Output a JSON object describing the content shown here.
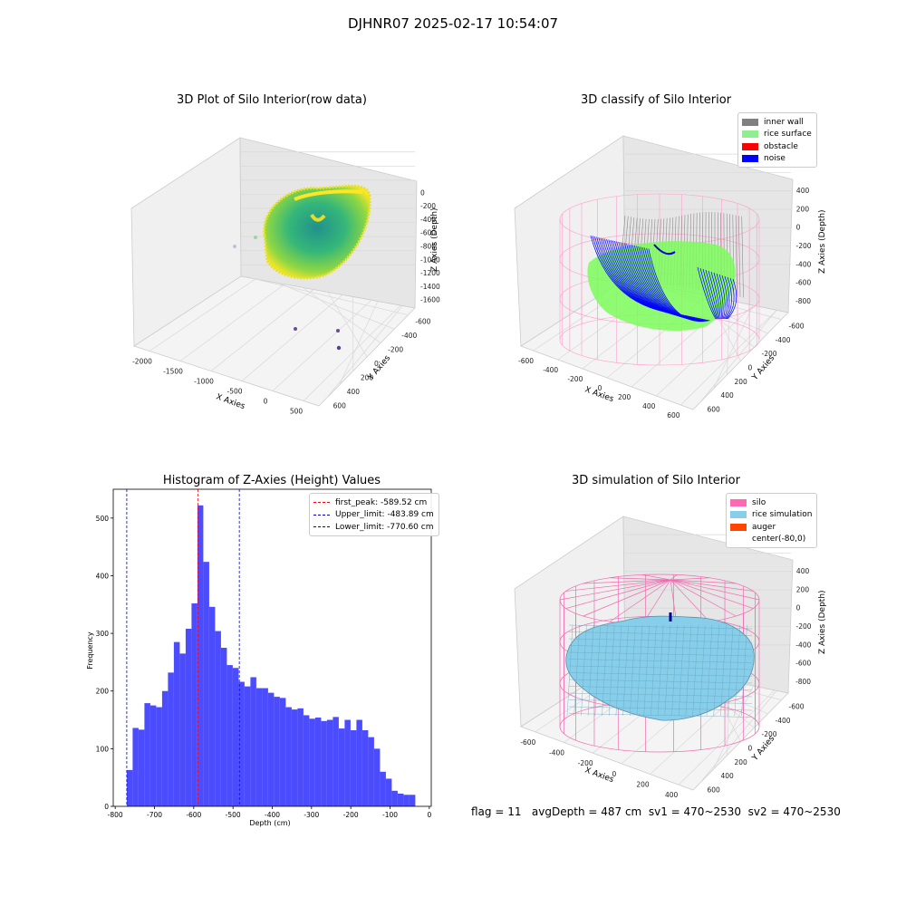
{
  "figure": {
    "suptitle": "DJHNR07 2025-02-17 10:54:07",
    "footer": "flag = 11   avgDepth = 487 cm  sv1 = 470~2530  sv2 = 470~2530"
  },
  "panels": {
    "raw": {
      "title": "3D Plot of Silo Interior(row data)",
      "xlabel": "X Axies",
      "ylabel": "Y Axies",
      "zlabel": "Z Axies (Depth)",
      "xticks": [
        "-2000",
        "-1500",
        "-1000",
        "-500",
        "0",
        "500"
      ],
      "yticks": [
        "-600",
        "-400",
        "-200",
        "0",
        "200",
        "400",
        "600"
      ],
      "zticks": [
        "0",
        "-200",
        "-400",
        "-600",
        "-800",
        "-1000",
        "-1200",
        "-1400",
        "-1600"
      ]
    },
    "classify": {
      "title": "3D classify of Silo Interior",
      "xlabel": "X Axies",
      "ylabel": "Y Axies",
      "zlabel": "Z Axies (Depth)",
      "xticks": [
        "-600",
        "-400",
        "-200",
        "0",
        "200",
        "400",
        "600"
      ],
      "yticks": [
        "-600",
        "-400",
        "-200",
        "0",
        "200",
        "400",
        "600"
      ],
      "zticks": [
        "400",
        "200",
        "0",
        "-200",
        "-400",
        "-600",
        "-800"
      ],
      "legend": [
        {
          "label": "inner wall",
          "color": "#808080"
        },
        {
          "label": "rice surface",
          "color": "#90ee90"
        },
        {
          "label": "obstacle",
          "color": "#ff0000"
        },
        {
          "label": "noise",
          "color": "#0000ff"
        }
      ]
    },
    "simulation": {
      "title": "3D simulation of Silo Interior",
      "xlabel": "X Axies",
      "ylabel": "Y Axies",
      "zlabel": "Z Axies (Depth)",
      "xticks": [
        "-600",
        "-400",
        "-200",
        "0",
        "200",
        "400"
      ],
      "yticks": [
        "-600",
        "-400",
        "-200",
        "0",
        "200",
        "400",
        "600"
      ],
      "zticks": [
        "400",
        "200",
        "0",
        "-200",
        "-400",
        "-600",
        "-800"
      ],
      "legend": [
        {
          "label": "silo",
          "color": "#ff69b4"
        },
        {
          "label": "rice simulation",
          "color": "#87ceeb"
        },
        {
          "label": "auger",
          "color": "#ff4500"
        },
        {
          "label": "center(-80,0)",
          "color": ""
        }
      ]
    }
  },
  "chart_data": {
    "type": "bar",
    "title": "Histogram of Z-Axies (Height) Values",
    "xlabel": "Depth (cm)",
    "ylabel": "Frequency",
    "xlim": [
      -805,
      5
    ],
    "ylim": [
      0,
      550
    ],
    "xticks": [
      -800,
      -700,
      -600,
      -500,
      -400,
      -300,
      -200,
      -100,
      0
    ],
    "yticks": [
      0,
      100,
      200,
      300,
      400,
      500
    ],
    "bin_start": -770.6,
    "bin_width": 15.0,
    "values": [
      63,
      136,
      133,
      179,
      175,
      172,
      200,
      232,
      285,
      265,
      308,
      352,
      522,
      424,
      346,
      304,
      275,
      245,
      240,
      216,
      208,
      224,
      205,
      205,
      197,
      190,
      188,
      172,
      168,
      170,
      158,
      152,
      154,
      148,
      150,
      155,
      135,
      150,
      132,
      150,
      132,
      120,
      100,
      60,
      48,
      27,
      22,
      20,
      20
    ],
    "color": "#4c4cff",
    "vlines": [
      {
        "label": "first_peak: -589.52 cm",
        "x": -589.52,
        "color": "#ff0000"
      },
      {
        "label": "Upper_limit: -483.89 cm",
        "x": -483.89,
        "color": "#0000cc"
      },
      {
        "label": "Lower_limit: -770.60 cm",
        "x": -770.6,
        "color": "#0000cc"
      }
    ],
    "legend_position": "top-right"
  }
}
